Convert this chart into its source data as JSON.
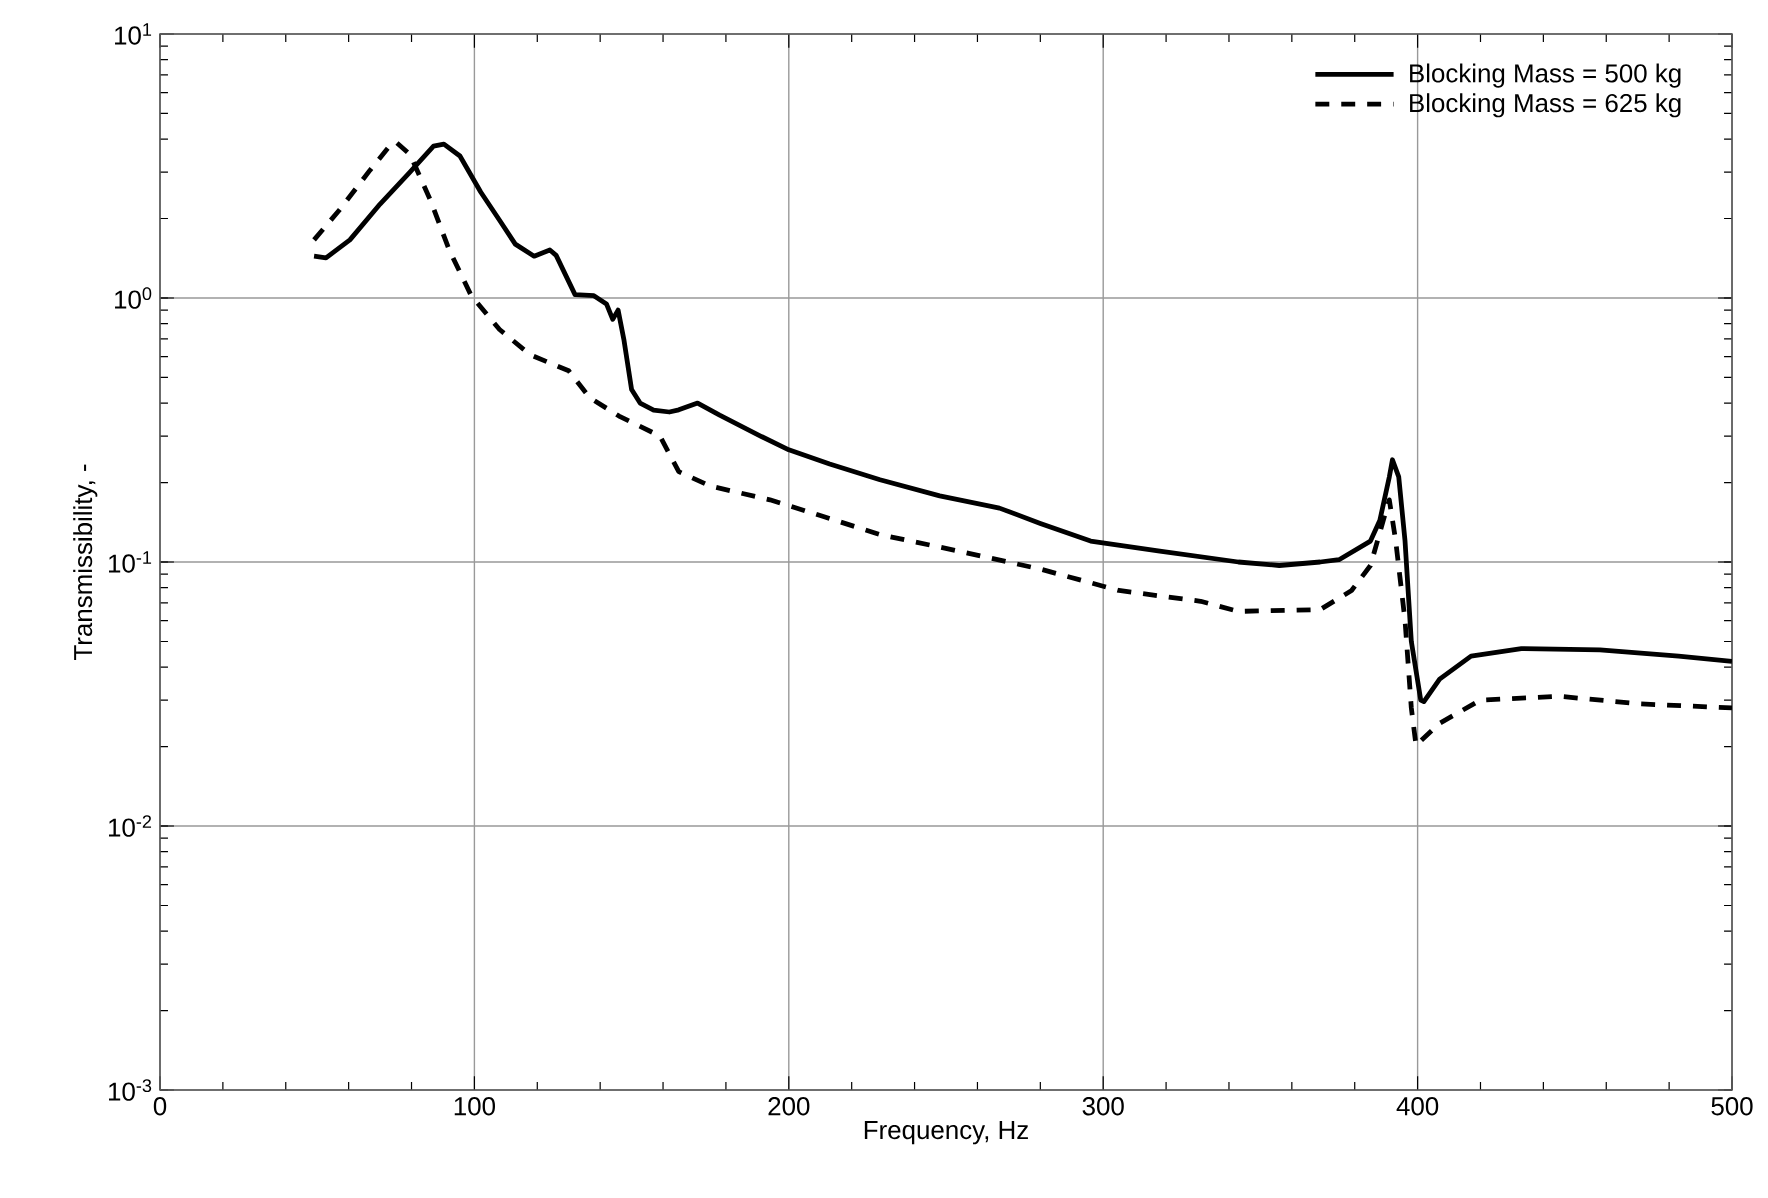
{
  "chart_data": {
    "type": "line",
    "xlabel": "Frequency, Hz",
    "ylabel": "Transmissibility, -",
    "log": "y",
    "grid": true,
    "legend": "top right",
    "marker": "none",
    "xlim": [
      0,
      500
    ],
    "xticks": [
      0,
      100,
      200,
      300,
      400,
      500
    ],
    "ylim": [
      0.001,
      10
    ],
    "yticks": [
      {
        "value": 0.001,
        "label": "10$^{-3}$"
      },
      {
        "value": 0.01,
        "label": "10$^{-2}$"
      },
      {
        "value": 0.1,
        "label": "10$^{-1}$"
      },
      {
        "value": 1,
        "label": "10$^{0}$"
      },
      {
        "value": 10,
        "label": "10$^{1}$"
      }
    ],
    "series": [
      {
        "name": "Blocking Mass = 500 kg",
        "color": "#000000",
        "line_style": "solid",
        "x": [
          49,
          52.8,
          60.4,
          70,
          79.5,
          87,
          90.3,
          95.4,
          102,
          108,
          113,
          119,
          124,
          126,
          132,
          138,
          142,
          144,
          145.7,
          147.6,
          150,
          152.7,
          157,
          162,
          165,
          171,
          178,
          191,
          200,
          213,
          229,
          248,
          267,
          280,
          296,
          318,
          343,
          356,
          369,
          375,
          385,
          388,
          391,
          392,
          394,
          396,
          398,
          401,
          402,
          407,
          417,
          433,
          458,
          483,
          500
        ],
        "values": [
          1.44,
          1.42,
          1.66,
          2.27,
          3.0,
          3.76,
          3.83,
          3.45,
          2.52,
          1.97,
          1.6,
          1.44,
          1.52,
          1.45,
          1.03,
          1.02,
          0.95,
          0.83,
          0.9,
          0.69,
          0.45,
          0.4,
          0.376,
          0.37,
          0.377,
          0.4,
          0.36,
          0.3,
          0.266,
          0.235,
          0.205,
          0.178,
          0.16,
          0.14,
          0.12,
          0.11,
          0.1,
          0.097,
          0.1,
          0.102,
          0.12,
          0.144,
          0.21,
          0.244,
          0.21,
          0.12,
          0.05,
          0.03,
          0.0296,
          0.036,
          0.044,
          0.047,
          0.0465,
          0.044,
          0.042
        ]
      },
      {
        "name": "Blocking Mass = 625 kg",
        "color": "#000000",
        "line_style": "dashed",
        "x": [
          49,
          57,
          66.8,
          73,
          75,
          79.5,
          86,
          92,
          99,
          108,
          117.7,
          130,
          136.6,
          146,
          159,
          165,
          175,
          194,
          210,
          229,
          254,
          280,
          305,
          331,
          343,
          369,
          379,
          385,
          390,
          391,
          393,
          396,
          398,
          399.5,
          407,
          420,
          445,
          471,
          500
        ],
        "values": [
          1.66,
          2.15,
          3.05,
          3.76,
          3.9,
          3.5,
          2.35,
          1.52,
          1.02,
          0.76,
          0.61,
          0.53,
          0.42,
          0.357,
          0.3,
          0.22,
          0.194,
          0.172,
          0.15,
          0.127,
          0.11,
          0.094,
          0.078,
          0.071,
          0.065,
          0.066,
          0.078,
          0.097,
          0.157,
          0.172,
          0.121,
          0.06,
          0.028,
          0.0202,
          0.0245,
          0.03,
          0.031,
          0.029,
          0.028
        ]
      }
    ]
  }
}
